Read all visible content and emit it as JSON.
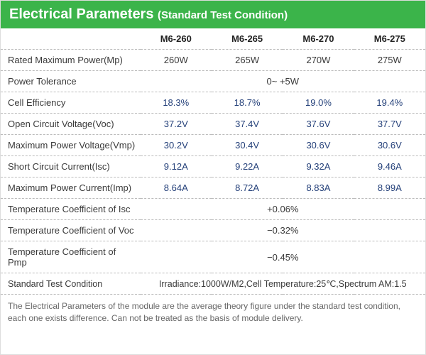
{
  "header": {
    "title": "Electrical Parameters",
    "subtitle": "(Standard Test Condition)",
    "bg_color": "#3bb44a",
    "text_color": "#ffffff"
  },
  "table": {
    "type": "table",
    "columns": [
      "M6-260",
      "M6-265",
      "M6-270",
      "M6-275"
    ],
    "row_divider_style": "dashed",
    "row_divider_color": "#bbbbbb",
    "text_color": "#3a3a3a",
    "highlight_color": "#25417a",
    "rows": [
      {
        "label": "Rated Maximum Power(Mp)",
        "values": [
          "260W",
          "265W",
          "270W",
          "275W"
        ],
        "highlight": false
      },
      {
        "label": "Power Tolerance",
        "span_value": "0~ +5W",
        "highlight": false
      },
      {
        "label": "Cell Efficiency",
        "values": [
          "18.3%",
          "18.7%",
          "19.0%",
          "19.4%"
        ],
        "highlight": true
      },
      {
        "label": "Open Circuit Voltage(Voc)",
        "values": [
          "37.2V",
          "37.4V",
          "37.6V",
          "37.7V"
        ],
        "highlight": true
      },
      {
        "label": "Maximum Power Voltage(Vmp)",
        "values": [
          "30.2V",
          "30.4V",
          "30.6V",
          "30.6V"
        ],
        "highlight": true
      },
      {
        "label": "Short Circuit Current(Isc)",
        "values": [
          "9.12A",
          "9.22A",
          "9.32A",
          "9.46A"
        ],
        "highlight": true
      },
      {
        "label": "Maximum Power Current(Imp)",
        "values": [
          "8.64A",
          "8.72A",
          "8.83A",
          "8.99A"
        ],
        "highlight": true
      },
      {
        "label": "Temperature Coefficient of Isc",
        "span_value": "+0.06%",
        "highlight": false
      },
      {
        "label": "Temperature Coefficient of Voc",
        "span_value": "−0.32%",
        "highlight": false
      },
      {
        "label": "Temperature Coefficient of Pmp",
        "span_value": "−0.45%",
        "highlight": false
      },
      {
        "label": "Standard Test Condition",
        "span_value": "Irradiance:1000W/M2,Cell Temperature:25℃,Spectrum AM:1.5",
        "highlight": false,
        "stc": true
      }
    ]
  },
  "footnote": "The Electrical Parameters of the module are the average theory figure under the standard test condition, each one exists difference. Can not be treated as the basis of module delivery."
}
